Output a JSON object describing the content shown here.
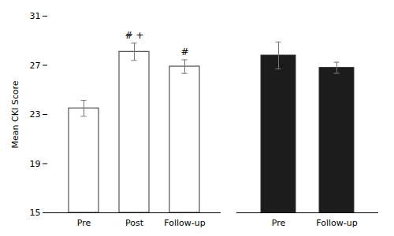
{
  "chart_data": [
    {
      "type": "bar",
      "categories": [
        "Pre",
        "Post",
        "Follow-up"
      ],
      "values": [
        23.5,
        28.1,
        26.9
      ],
      "errors": [
        0.65,
        0.7,
        0.55
      ],
      "color": "#ffffff",
      "ylabel": "Mean CKI Score",
      "ylim": [
        15,
        31
      ],
      "yticks": [
        15,
        19,
        23,
        27,
        31
      ],
      "annotations": [
        {
          "category": "Post",
          "text": "# +"
        },
        {
          "category": "Follow-up",
          "text": "#"
        }
      ]
    },
    {
      "type": "bar",
      "categories": [
        "Pre",
        "Follow-up"
      ],
      "values": [
        27.8,
        26.8
      ],
      "errors": [
        1.1,
        0.45
      ],
      "color": "#1c1c1c",
      "ylim": [
        15,
        31
      ],
      "yticks": [
        15,
        19,
        23,
        27,
        31
      ],
      "tick_labels": "x"
    }
  ]
}
